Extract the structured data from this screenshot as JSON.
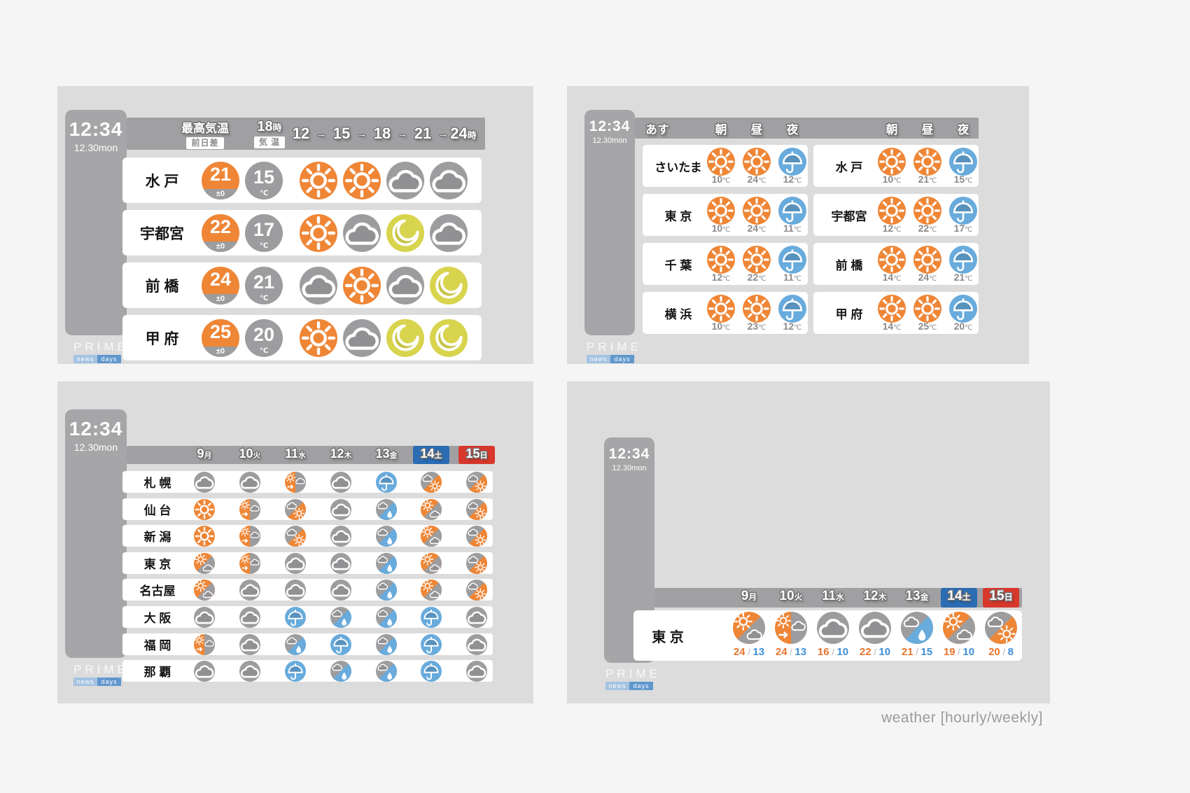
{
  "caption": "weather [hourly/weekly]",
  "clock": {
    "time": "12:34",
    "date": "12.30mon"
  },
  "logo": {
    "title": "PRIME",
    "sub1": "news",
    "sub2": "days"
  },
  "colors": {
    "sun_orange": "#ef8636",
    "cloud_gray": "#9d9d9f",
    "rain_blue": "#68abdc",
    "moon_yellow": "#d8d44e",
    "saturday_blue": "#2b6cb3",
    "sunday_red": "#d7382c",
    "high_temp": "#e8742c",
    "low_temp": "#3f8fd8"
  },
  "week": {
    "days": [
      {
        "n": "9",
        "w": "月",
        "style": ""
      },
      {
        "n": "10",
        "w": "火",
        "style": ""
      },
      {
        "n": "11",
        "w": "水",
        "style": ""
      },
      {
        "n": "12",
        "w": "木",
        "style": ""
      },
      {
        "n": "13",
        "w": "金",
        "style": ""
      },
      {
        "n": "14",
        "w": "土",
        "style": "sat"
      },
      {
        "n": "15",
        "w": "日",
        "style": "sun"
      }
    ]
  },
  "panel1": {
    "header": {
      "col1_top": "最高気温",
      "col1_badge": "前日差",
      "col2_top": {
        "n": "18",
        "w": "時"
      },
      "col2_badge": "気 温",
      "arrow": "→",
      "hours": [
        {
          "n": "12",
          "w": ""
        },
        {
          "n": "15",
          "w": ""
        },
        {
          "n": "18",
          "w": ""
        },
        {
          "n": "21",
          "w": ""
        },
        {
          "n": "24",
          "w": "時"
        }
      ]
    },
    "rows": [
      {
        "city": "水 戸",
        "high": "21",
        "diff": "±0",
        "low": "15",
        "unit": "℃",
        "icons": [
          "sun",
          "sun",
          "cloud",
          "cloud"
        ]
      },
      {
        "city": "宇都宮",
        "high": "22",
        "diff": "±0",
        "low": "17",
        "unit": "℃",
        "icons": [
          "sun",
          "cloud",
          "moon",
          "cloud"
        ]
      },
      {
        "city": "前 橋",
        "high": "24",
        "diff": "±0",
        "low": "21",
        "unit": "℃",
        "icons": [
          "cloud",
          "sun",
          "cloud",
          "moon"
        ]
      },
      {
        "city": "甲 府",
        "high": "25",
        "diff": "±0",
        "low": "20",
        "unit": "℃",
        "icons": [
          "sun",
          "cloud",
          "moon",
          "moon"
        ]
      }
    ]
  },
  "panel2": {
    "header": {
      "tomorrow": "あす",
      "cols": [
        "朝",
        "昼",
        "夜"
      ]
    },
    "unit": "℃",
    "left_rows": [
      {
        "city": "さいたま",
        "cells": [
          {
            "icon": "sun",
            "t": "10"
          },
          {
            "icon": "sun",
            "t": "24"
          },
          {
            "icon": "umbrella",
            "t": "12"
          }
        ]
      },
      {
        "city": "東 京",
        "cells": [
          {
            "icon": "sun",
            "t": "10"
          },
          {
            "icon": "sun",
            "t": "24"
          },
          {
            "icon": "umbrella",
            "t": "11"
          }
        ]
      },
      {
        "city": "千 葉",
        "cells": [
          {
            "icon": "sun",
            "t": "12"
          },
          {
            "icon": "sun",
            "t": "22"
          },
          {
            "icon": "umbrella",
            "t": "11"
          }
        ]
      },
      {
        "city": "横 浜",
        "cells": [
          {
            "icon": "sun",
            "t": "10"
          },
          {
            "icon": "sun",
            "t": "23"
          },
          {
            "icon": "umbrella",
            "t": "12"
          }
        ]
      }
    ],
    "right_rows": [
      {
        "city": "水 戸",
        "cells": [
          {
            "icon": "sun",
            "t": "10"
          },
          {
            "icon": "sun",
            "t": "21"
          },
          {
            "icon": "umbrella",
            "t": "15"
          }
        ]
      },
      {
        "city": "宇都宮",
        "cells": [
          {
            "icon": "sun",
            "t": "12"
          },
          {
            "icon": "sun",
            "t": "22"
          },
          {
            "icon": "umbrella",
            "t": "17"
          }
        ]
      },
      {
        "city": "前 橋",
        "cells": [
          {
            "icon": "sun",
            "t": "14"
          },
          {
            "icon": "sun",
            "t": "24"
          },
          {
            "icon": "umbrella",
            "t": "21"
          }
        ]
      },
      {
        "city": "甲 府",
        "cells": [
          {
            "icon": "sun",
            "t": "14"
          },
          {
            "icon": "sun",
            "t": "25"
          },
          {
            "icon": "umbrella",
            "t": "20"
          }
        ]
      }
    ]
  },
  "panel3": {
    "rows": [
      {
        "city": "札 幌",
        "icons": [
          "cloud",
          "cloud",
          "sun_to_cloud",
          "cloud",
          "umbrella",
          "cloud_sun",
          "cloud_sun"
        ]
      },
      {
        "city": "仙 台",
        "icons": [
          "sun",
          "sun_to_cloud",
          "cloud_sun",
          "cloud",
          "cloud_rain",
          "sun_cloud",
          "cloud_sun"
        ]
      },
      {
        "city": "新 潟",
        "icons": [
          "sun",
          "sun_to_cloud",
          "cloud_sun",
          "cloud",
          "cloud_rain",
          "sun_cloud",
          "cloud_sun"
        ]
      },
      {
        "city": "東 京",
        "icons": [
          "sun_cloud",
          "sun_to_cloud",
          "cloud",
          "cloud",
          "cloud_rain",
          "sun_cloud",
          "cloud_sun"
        ]
      },
      {
        "city": "名古屋",
        "icons": [
          "sun_cloud",
          "cloud",
          "cloud",
          "cloud",
          "cloud_rain",
          "sun_cloud",
          "cloud_sun"
        ]
      },
      {
        "city": "大 阪",
        "icons": [
          "cloud",
          "cloud",
          "umbrella",
          "cloud_rain",
          "cloud_rain",
          "umbrella",
          "cloud"
        ]
      },
      {
        "city": "福 岡",
        "icons": [
          "sun_to_cloud",
          "cloud",
          "cloud_rain",
          "umbrella",
          "cloud_rain",
          "umbrella",
          "cloud"
        ]
      },
      {
        "city": "那 覇",
        "icons": [
          "cloud",
          "cloud",
          "umbrella",
          "cloud_rain",
          "cloud_rain",
          "umbrella",
          "cloud"
        ]
      }
    ]
  },
  "panel4": {
    "row": {
      "city": "東 京",
      "sep": "/",
      "cells": [
        {
          "icon": "sun_cloud",
          "hi": "24",
          "lo": "13"
        },
        {
          "icon": "sun_to_cloud",
          "hi": "24",
          "lo": "13"
        },
        {
          "icon": "cloud",
          "hi": "16",
          "lo": "10"
        },
        {
          "icon": "cloud",
          "hi": "22",
          "lo": "10"
        },
        {
          "icon": "cloud_rain",
          "hi": "21",
          "lo": "15"
        },
        {
          "icon": "sun_cloud",
          "hi": "19",
          "lo": "10"
        },
        {
          "icon": "cloud_sun",
          "hi": "20",
          "lo": "8"
        }
      ]
    }
  }
}
